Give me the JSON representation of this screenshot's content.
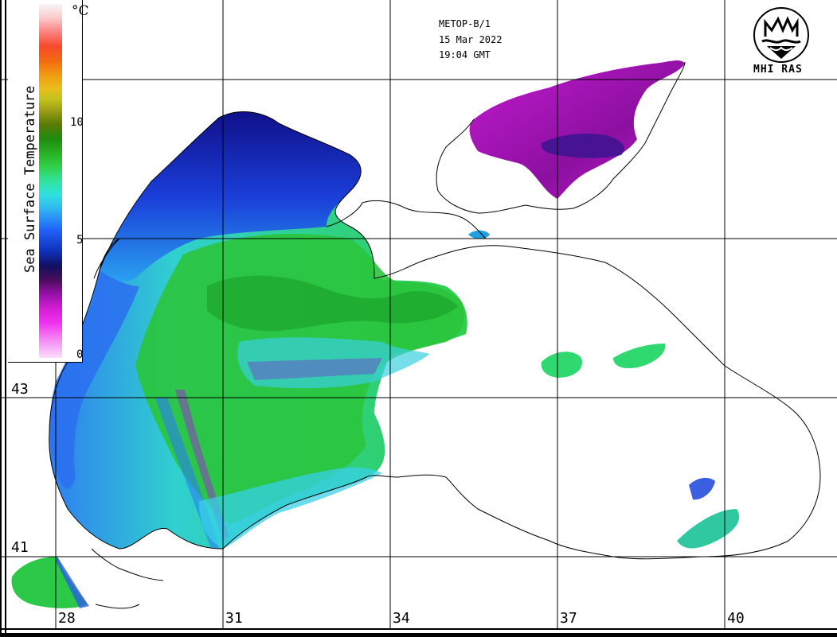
{
  "satellite": {
    "platform": "METOP-B/1",
    "date": "15 Mar 2022",
    "time": "19:04 GMT"
  },
  "logo": {
    "text": "MHI RAS",
    "icon": "mhi-ras-emblem-icon"
  },
  "legend": {
    "title": "Sea Surface Temperature",
    "unit": "°C",
    "ticks": [
      "10",
      "5",
      "0"
    ],
    "colormap_note": [
      "pink",
      "magenta",
      "purple",
      "navy",
      "blue",
      "cyan",
      "green",
      "dark green",
      "olive",
      "yellow",
      "orange",
      "red",
      "pink",
      "white"
    ]
  },
  "graticule": {
    "longitudes": [
      "28",
      "31",
      "34",
      "37",
      "40"
    ],
    "latitudes": [
      "43",
      "41"
    ]
  },
  "colors": {
    "land": "#ffffff",
    "coast": "#000000",
    "warm_water": "#2fd13a",
    "cool_water": "#1a3ed8",
    "cold_water": "#9b13b0"
  }
}
